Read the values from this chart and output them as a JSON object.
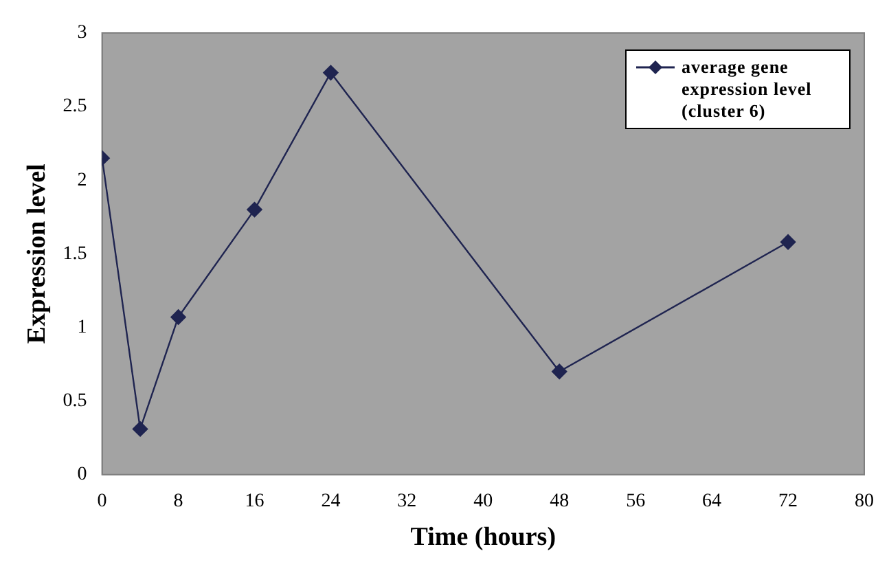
{
  "chart_data": {
    "type": "line",
    "xlabel": "Time (hours)",
    "ylabel": "Expression level",
    "x": [
      0,
      4,
      8,
      16,
      24,
      48,
      72
    ],
    "series": [
      {
        "name": "average gene expression level (cluster 6)",
        "color": "#1f2450",
        "values": [
          2.15,
          0.31,
          1.07,
          1.8,
          2.73,
          0.7,
          1.58
        ]
      }
    ],
    "xlim": [
      0,
      80
    ],
    "xticks": [
      0,
      8,
      16,
      24,
      32,
      40,
      48,
      56,
      64,
      72,
      80
    ],
    "ylim": [
      0,
      3
    ],
    "yticks": [
      0,
      0.5,
      1,
      1.5,
      2,
      2.5,
      3
    ],
    "grid": false,
    "legend": "top right",
    "marker": "diamond",
    "line_style": "solid"
  }
}
